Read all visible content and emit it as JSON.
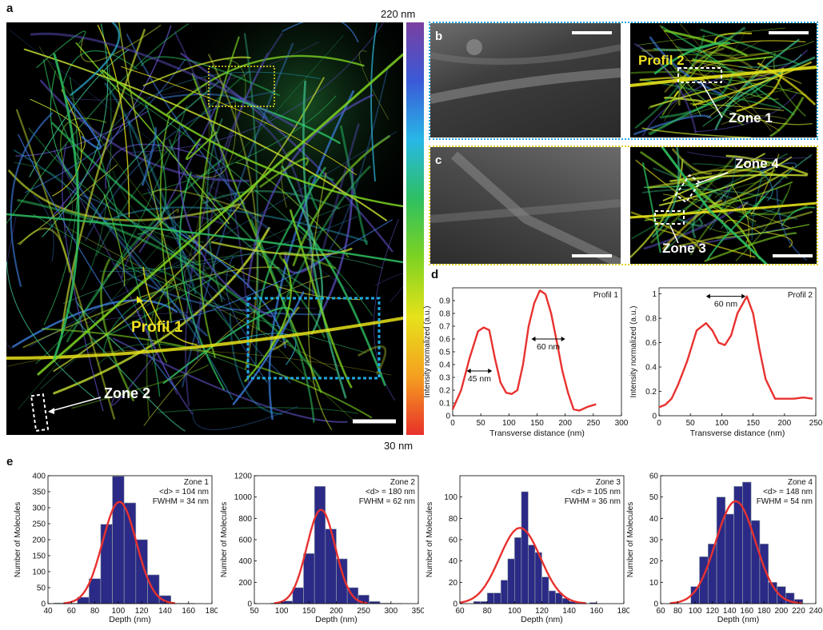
{
  "panels": {
    "a": "a",
    "b": "b",
    "c": "c",
    "d": "d",
    "e": "e"
  },
  "colorbar": {
    "top": "220 nm",
    "bottom": "30 nm",
    "stops": [
      "#7a3fa0",
      "#3a5ad8",
      "#28b8e6",
      "#2ec060",
      "#7ed321",
      "#e6e21a",
      "#f5a020",
      "#e8302a"
    ]
  },
  "image_a": {
    "profil1": "Profil 1",
    "zone2": "Zone 2"
  },
  "image_b": {
    "profil2": "Profil 2",
    "zone1": "Zone 1",
    "frame_color": "#1fa8e0"
  },
  "image_c": {
    "zone4": "Zone 4",
    "zone3": "Zone 3",
    "frame_color": "#e8d21a"
  },
  "label_colors": {
    "profil": "#f0e020",
    "zone": "#ffffff"
  },
  "chart_data": [
    {
      "type": "line",
      "panel": "d",
      "annotation": "Profil 1",
      "xlabel": "Transverse distance (nm)",
      "ylabel": "Intensity normalized (a.u.)",
      "xlim": [
        0,
        300
      ],
      "ylim": [
        0,
        1
      ],
      "xticks": [
        0,
        50,
        100,
        150,
        200,
        250,
        300
      ],
      "yticks": [
        0,
        0.1,
        0.2,
        0.3,
        0.4,
        0.5,
        0.6,
        0.7,
        0.8,
        0.9
      ],
      "x": [
        0,
        15,
        30,
        45,
        55,
        65,
        75,
        85,
        95,
        105,
        115,
        125,
        135,
        145,
        155,
        165,
        175,
        185,
        195,
        205,
        215,
        225,
        240,
        255
      ],
      "y": [
        0.05,
        0.2,
        0.45,
        0.66,
        0.69,
        0.67,
        0.45,
        0.26,
        0.18,
        0.17,
        0.2,
        0.4,
        0.7,
        0.88,
        0.98,
        0.95,
        0.8,
        0.58,
        0.35,
        0.18,
        0.05,
        0.04,
        0.07,
        0.09
      ],
      "arrows": [
        {
          "x1": 25,
          "x2": 70,
          "y": 0.35,
          "label": "45 nm"
        },
        {
          "x1": 140,
          "x2": 200,
          "y": 0.6,
          "label": "60 nm"
        }
      ],
      "color": "#e8312f"
    },
    {
      "type": "line",
      "panel": "d",
      "annotation": "Profil 2",
      "xlabel": "Transverse distance (nm)",
      "ylabel": "Intensity normalized (a.u.)",
      "xlim": [
        0,
        250
      ],
      "ylim": [
        0,
        1.05
      ],
      "xticks": [
        0,
        50,
        100,
        150,
        200,
        250
      ],
      "yticks": [
        0,
        0.2,
        0.4,
        0.6,
        0.8,
        1
      ],
      "x": [
        0,
        10,
        20,
        30,
        45,
        60,
        75,
        85,
        95,
        105,
        115,
        125,
        140,
        150,
        160,
        170,
        185,
        200,
        215,
        230,
        245
      ],
      "y": [
        0.07,
        0.09,
        0.14,
        0.25,
        0.45,
        0.7,
        0.76,
        0.7,
        0.6,
        0.58,
        0.66,
        0.84,
        0.98,
        0.84,
        0.55,
        0.3,
        0.14,
        0.14,
        0.14,
        0.15,
        0.14
      ],
      "arrows": [
        {
          "x1": 75,
          "x2": 138,
          "y": 0.98,
          "label": "60 nm"
        }
      ],
      "color": "#e8312f"
    },
    {
      "type": "bar",
      "panel": "e",
      "annotation": "Zone 1",
      "stats": [
        "<d> = 104 nm",
        "FWHM = 34 nm"
      ],
      "xlabel": "Depth (nm)",
      "ylabel": "Number of Molecules",
      "xlim": [
        40,
        180
      ],
      "ylim": [
        0,
        400
      ],
      "xticks": [
        40,
        60,
        80,
        100,
        120,
        140,
        160,
        180
      ],
      "yticks": [
        0,
        50,
        100,
        150,
        200,
        250,
        300,
        350,
        400
      ],
      "bins_start": [
        45,
        55,
        65,
        75,
        85,
        95,
        105,
        115,
        125,
        135,
        145,
        155
      ],
      "bin_width": 10,
      "values": [
        2,
        1,
        20,
        78,
        248,
        398,
        315,
        200,
        90,
        25,
        1,
        1
      ],
      "fit": {
        "mu": 101,
        "sigma": 14.4,
        "peak": 318
      }
    },
    {
      "type": "bar",
      "panel": "e",
      "annotation": "Zone 2",
      "stats": [
        "<d> = 180 nm",
        "FWHM = 62 nm"
      ],
      "xlabel": "Depth (nm)",
      "ylabel": "Number of Molecules",
      "xlim": [
        50,
        350
      ],
      "ylim": [
        0,
        1200
      ],
      "xticks": [
        50,
        100,
        150,
        200,
        250,
        300,
        350
      ],
      "yticks": [
        0,
        200,
        400,
        600,
        800,
        1000,
        1200
      ],
      "bins_start": [
        80,
        100,
        120,
        140,
        160,
        180,
        200,
        220,
        240,
        260,
        280,
        300
      ],
      "bin_width": 20,
      "values": [
        5,
        25,
        150,
        470,
        1100,
        700,
        420,
        150,
        80,
        20,
        5,
        2
      ],
      "fit": {
        "mu": 172,
        "sigma": 26,
        "peak": 880
      }
    },
    {
      "type": "bar",
      "panel": "e",
      "annotation": "Zone 3",
      "stats": [
        "<d> = 105 nm",
        "FWHM = 36 nm"
      ],
      "xlabel": "Depth (nm)",
      "ylabel": "Number of Molecules",
      "xlim": [
        60,
        180
      ],
      "ylim": [
        0,
        120
      ],
      "xticks": [
        60,
        80,
        100,
        120,
        140,
        160,
        180
      ],
      "yticks": [
        0,
        20,
        40,
        60,
        80,
        100
      ],
      "bins_start": [
        70,
        75,
        80,
        85,
        90,
        95,
        100,
        105,
        110,
        115,
        120,
        125,
        130,
        135,
        140,
        145,
        150,
        155
      ],
      "bin_width": 5,
      "values": [
        2,
        2,
        10,
        10,
        22,
        42,
        62,
        105,
        55,
        48,
        25,
        12,
        10,
        5,
        2,
        1,
        0,
        1
      ],
      "fit": {
        "mu": 104,
        "sigma": 15,
        "peak": 71
      }
    },
    {
      "type": "bar",
      "panel": "e",
      "annotation": "Zone 4",
      "stats": [
        "<d> = 148 nm",
        "FWHM = 54 nm"
      ],
      "xlabel": "Depth (nm)",
      "ylabel": "Number of Molecules",
      "xlim": [
        60,
        240
      ],
      "ylim": [
        0,
        60
      ],
      "xticks": [
        60,
        80,
        100,
        120,
        140,
        160,
        180,
        200,
        220,
        240
      ],
      "yticks": [
        0,
        10,
        20,
        30,
        40,
        50,
        60
      ],
      "bins_start": [
        95,
        105,
        115,
        125,
        135,
        145,
        155,
        165,
        175,
        185,
        195,
        205,
        215
      ],
      "bin_width": 10,
      "values": [
        8,
        22,
        28,
        50,
        42,
        55,
        57,
        39,
        28,
        10,
        8,
        5,
        2
      ],
      "fit": {
        "mu": 147,
        "sigma": 23,
        "peak": 48
      }
    }
  ]
}
